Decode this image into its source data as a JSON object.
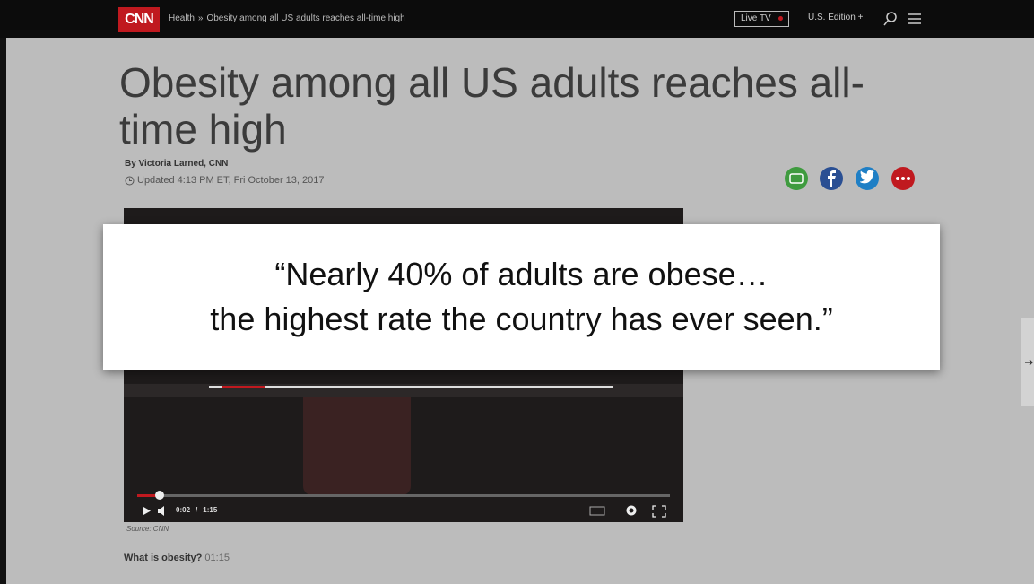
{
  "header": {
    "logo": "CNN",
    "breadcrumb": {
      "section": "Health",
      "separator": "»",
      "page": "Obesity among all US adults reaches all-time high"
    },
    "live_tv": "Live TV",
    "edition": "U.S. Edition +"
  },
  "article": {
    "headline": "Obesity among all US adults reaches all-time high",
    "byline": "By Victoria Larned, CNN",
    "updated": "Updated 4:13 PM ET, Fri October 13, 2017"
  },
  "video": {
    "current_time": "0:02",
    "time_separator": "/",
    "duration": "1:15",
    "source": "Source: CNN",
    "caption_title": "What is obesity?",
    "caption_duration": "01:15"
  },
  "quote": {
    "lines": [
      "“Nearly 40% of adults are obese…",
      "the highest rate the country has ever seen.”"
    ]
  }
}
